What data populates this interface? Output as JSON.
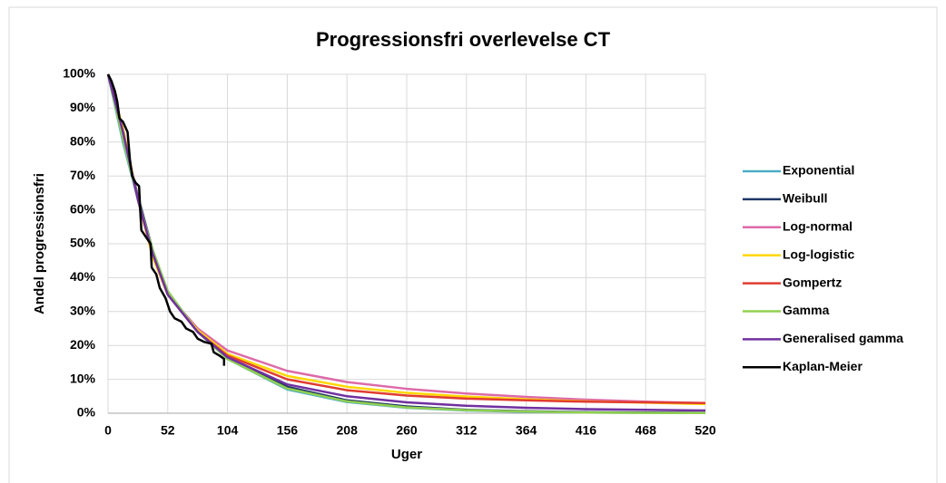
{
  "chart_data": {
    "type": "line",
    "title": "Progressionsfri overlevelse CT",
    "x_label": "Uger",
    "y_label": "Andel progressionsfri",
    "x": [
      0,
      13,
      26,
      39,
      52,
      78,
      104,
      156,
      208,
      260,
      312,
      364,
      416,
      468,
      520
    ],
    "series": [
      {
        "name": "Exponential",
        "color": "#4bacc6",
        "values": [
          100,
          80,
          63,
          48,
          36,
          24,
          16,
          7,
          3.3,
          1.6,
          0.8,
          0.4,
          0.2,
          0.1,
          0.05
        ]
      },
      {
        "name": "Weibull",
        "color": "#1f3864",
        "values": [
          100,
          82,
          64,
          48,
          35,
          24,
          16.5,
          7.8,
          3.8,
          2,
          1,
          0.6,
          0.3,
          0.2,
          0.1
        ]
      },
      {
        "name": "Log-normal",
        "color": "#dd6aa8",
        "values": [
          100,
          84,
          63,
          46,
          35,
          25,
          18.5,
          12.5,
          9.2,
          7.2,
          5.8,
          4.8,
          4,
          3.4,
          3
        ]
      },
      {
        "name": "Log-logistic",
        "color": "#ffd700",
        "values": [
          100,
          84,
          63,
          46,
          35,
          24.5,
          17.5,
          11,
          7.8,
          6,
          4.9,
          4.1,
          3.5,
          3.1,
          2.7
        ]
      },
      {
        "name": "Gompertz",
        "color": "#e03c31",
        "values": [
          100,
          83,
          63,
          47,
          35,
          24,
          17,
          10,
          6.8,
          5.2,
          4.3,
          3.8,
          3.4,
          3.2,
          3
        ]
      },
      {
        "name": "Gamma",
        "color": "#92d050",
        "values": [
          100,
          81,
          63,
          48,
          36,
          24,
          16,
          7.3,
          3.5,
          1.7,
          0.9,
          0.5,
          0.2,
          0.1,
          0.05
        ]
      },
      {
        "name": "Generalised gamma",
        "color": "#7030a0",
        "values": [
          100,
          83,
          63,
          47,
          35,
          24,
          16.5,
          8.5,
          5,
          3.2,
          2.2,
          1.6,
          1.2,
          1,
          0.8
        ]
      },
      {
        "name": "Kaplan-Meier",
        "color": "#000000",
        "x": [
          0,
          3,
          6,
          8,
          10,
          13,
          17,
          19,
          21,
          24,
          27,
          28,
          29,
          33,
          37,
          38,
          42,
          45,
          50,
          54,
          58,
          64,
          68,
          74,
          78,
          84,
          90,
          92,
          97,
          101,
          101
        ],
        "values": [
          100,
          98,
          95,
          92,
          87,
          86,
          83,
          75,
          70,
          68,
          67,
          60,
          54,
          52,
          50,
          43,
          41,
          37,
          34,
          30,
          28,
          27,
          25,
          24,
          22,
          21,
          20.5,
          18,
          17,
          16,
          14
        ]
      }
    ],
    "xlim": [
      0,
      520
    ],
    "xticks": [
      0,
      52,
      104,
      156,
      208,
      260,
      312,
      364,
      416,
      468,
      520
    ],
    "ylim": [
      0,
      100
    ],
    "yticks": [
      {
        "value": 0,
        "label": "0%"
      },
      {
        "value": 10,
        "label": "10%"
      },
      {
        "value": 20,
        "label": "20%"
      },
      {
        "value": 30,
        "label": "30%"
      },
      {
        "value": 40,
        "label": "40%"
      },
      {
        "value": 50,
        "label": "50%"
      },
      {
        "value": 60,
        "label": "60%"
      },
      {
        "value": 70,
        "label": "70%"
      },
      {
        "value": 80,
        "label": "80%"
      },
      {
        "value": 90,
        "label": "90%"
      },
      {
        "value": 100,
        "label": "100%"
      }
    ],
    "grid": true,
    "legend": "right"
  }
}
